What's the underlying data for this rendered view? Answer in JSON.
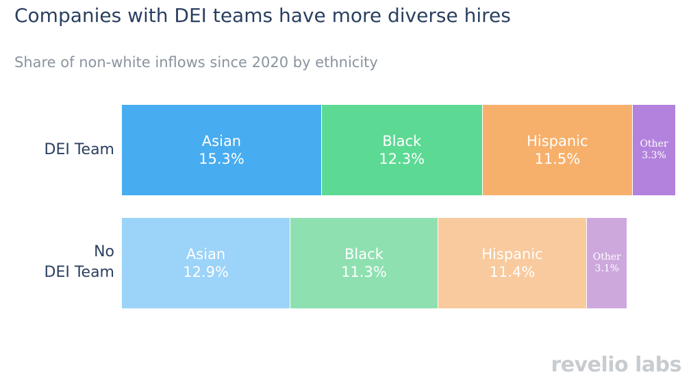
{
  "title": "Companies with DEI teams have more diverse hires",
  "subtitle": "Share of non-white inflows since 2020 by ethnicity",
  "logo": "revelio labs",
  "chart_data": {
    "type": "bar",
    "orientation": "horizontal",
    "stacked": true,
    "title": "Companies with DEI teams have more diverse hires",
    "subtitle": "Share of non-white inflows since 2020 by ethnicity",
    "categories": [
      "DEI Team",
      "No DEI Team"
    ],
    "series": [
      {
        "name": "Asian",
        "values": [
          15.3,
          12.9
        ],
        "colors": [
          "#48acf0",
          "#9cd3f8"
        ]
      },
      {
        "name": "Black",
        "values": [
          12.3,
          11.3
        ],
        "colors": [
          "#5cd993",
          "#8ee0b0"
        ]
      },
      {
        "name": "Hispanic",
        "values": [
          11.5,
          11.4
        ],
        "colors": [
          "#f7b06b",
          "#f8ca9d"
        ]
      },
      {
        "name": "Other",
        "values": [
          3.3,
          3.1
        ],
        "colors": [
          "#b282dc",
          "#cda8dd"
        ]
      }
    ],
    "value_labels": [
      [
        "15.3%",
        "12.3%",
        "11.5%",
        "3.3%"
      ],
      [
        "12.9%",
        "11.3%",
        "11.4%",
        "3.1%"
      ]
    ],
    "axes_visible": false,
    "grid": false,
    "legend": "none"
  }
}
